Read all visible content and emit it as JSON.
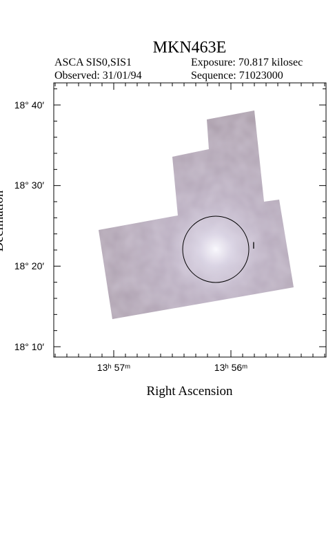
{
  "header": {
    "title": "MKN463E",
    "instrument": "ASCA SIS0,SIS1",
    "exposure": "Exposure: 70.817 kilosec",
    "observed": "Observed: 31/01/94",
    "sequence": "Sequence: 71023000"
  },
  "axes": {
    "x_label": "Right Ascension",
    "y_label": "Declination",
    "x_tick_labels": [
      "13ʰ 57ᵐ",
      "13ʰ 56ᵐ"
    ],
    "y_tick_labels": [
      "18° 40′",
      "18° 30′",
      "18° 20′",
      "18° 10′"
    ]
  },
  "source_marker": "I"
}
